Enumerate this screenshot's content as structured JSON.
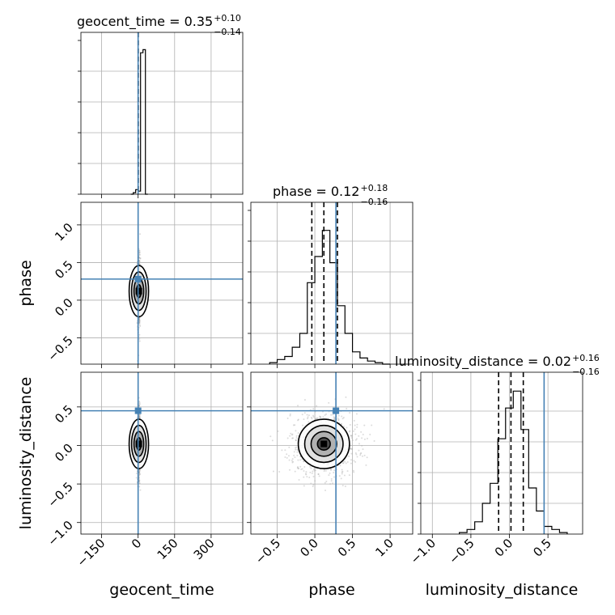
{
  "colors": {
    "truth": "#4682b4",
    "hist": "#000000",
    "grid": "#b0b0b0",
    "scatter": "#9a9a9a"
  },
  "chart_data": {
    "type": "corner",
    "parameters": [
      "geocent_time",
      "phase",
      "luminosity_distance"
    ],
    "truths": {
      "geocent_time": 0,
      "phase": 0.28,
      "luminosity_distance": 0.45
    },
    "titles": [
      {
        "param": "geocent_time",
        "median": "0.35",
        "plus": "+0.10",
        "minus": "−0.14"
      },
      {
        "param": "phase",
        "median": "0.12",
        "plus": "+0.18",
        "minus": "−0.16"
      },
      {
        "param": "luminosity_distance",
        "median": "0.02",
        "plus": "+0.16",
        "minus": "−0.16"
      }
    ],
    "axes": {
      "geocent_time": {
        "range": [
          -235,
          430
        ],
        "ticks": [
          -150,
          0,
          150,
          300
        ],
        "tick_labels": [
          "−150",
          "0",
          "150",
          "300"
        ]
      },
      "phase": {
        "range": [
          -0.85,
          1.3
        ],
        "ticks": [
          -0.5,
          0.0,
          0.5,
          1.0
        ],
        "tick_labels": [
          "−0.5",
          "0.0",
          "0.5",
          "1.0"
        ]
      },
      "luminosity_distance": {
        "range": [
          -1.15,
          0.95
        ],
        "ticks": [
          -1.0,
          -0.5,
          0.0,
          0.5
        ],
        "tick_labels": [
          "−1.0",
          "−0.5",
          "0.0",
          "0.5"
        ]
      }
    },
    "marginals": {
      "geocent_time": {
        "edges": [
          -30,
          -20,
          -10,
          0,
          10,
          20,
          30,
          40
        ],
        "counts": [
          0.0,
          0.01,
          0.03,
          0.02,
          0.92,
          0.94,
          0.0
        ],
        "quantiles": [
          0.21,
          0.35,
          0.45
        ]
      },
      "phase": {
        "edges": [
          -0.6,
          -0.5,
          -0.4,
          -0.3,
          -0.2,
          -0.1,
          0.0,
          0.1,
          0.2,
          0.3,
          0.4,
          0.5,
          0.6,
          0.7,
          0.8,
          0.9,
          1.0
        ],
        "counts": [
          0.01,
          0.03,
          0.05,
          0.11,
          0.2,
          0.53,
          0.7,
          0.87,
          0.66,
          0.38,
          0.2,
          0.08,
          0.04,
          0.02,
          0.01,
          0.0
        ],
        "quantiles": [
          -0.04,
          0.12,
          0.3
        ]
      },
      "luminosity_distance": {
        "edges": [
          -0.65,
          -0.55,
          -0.45,
          -0.35,
          -0.25,
          -0.15,
          -0.05,
          0.05,
          0.15,
          0.25,
          0.35,
          0.45,
          0.55,
          0.65,
          0.75
        ],
        "counts": [
          0.01,
          0.03,
          0.08,
          0.2,
          0.33,
          0.62,
          0.82,
          0.93,
          0.68,
          0.3,
          0.15,
          0.05,
          0.03,
          0.01
        ],
        "quantiles": [
          -0.14,
          0.02,
          0.18
        ]
      }
    },
    "pairs": [
      {
        "x": "geocent_time",
        "y": "phase",
        "cx": 3,
        "cy": 0.12,
        "sx": 3,
        "sy": 0.17
      },
      {
        "x": "geocent_time",
        "y": "luminosity_distance",
        "cx": 3,
        "cy": 0.02,
        "sx": 3,
        "sy": 0.16
      },
      {
        "x": "phase",
        "y": "luminosity_distance",
        "cx": 0.12,
        "cy": 0.02,
        "sx": 0.17,
        "sy": 0.16
      }
    ],
    "grid": true
  }
}
